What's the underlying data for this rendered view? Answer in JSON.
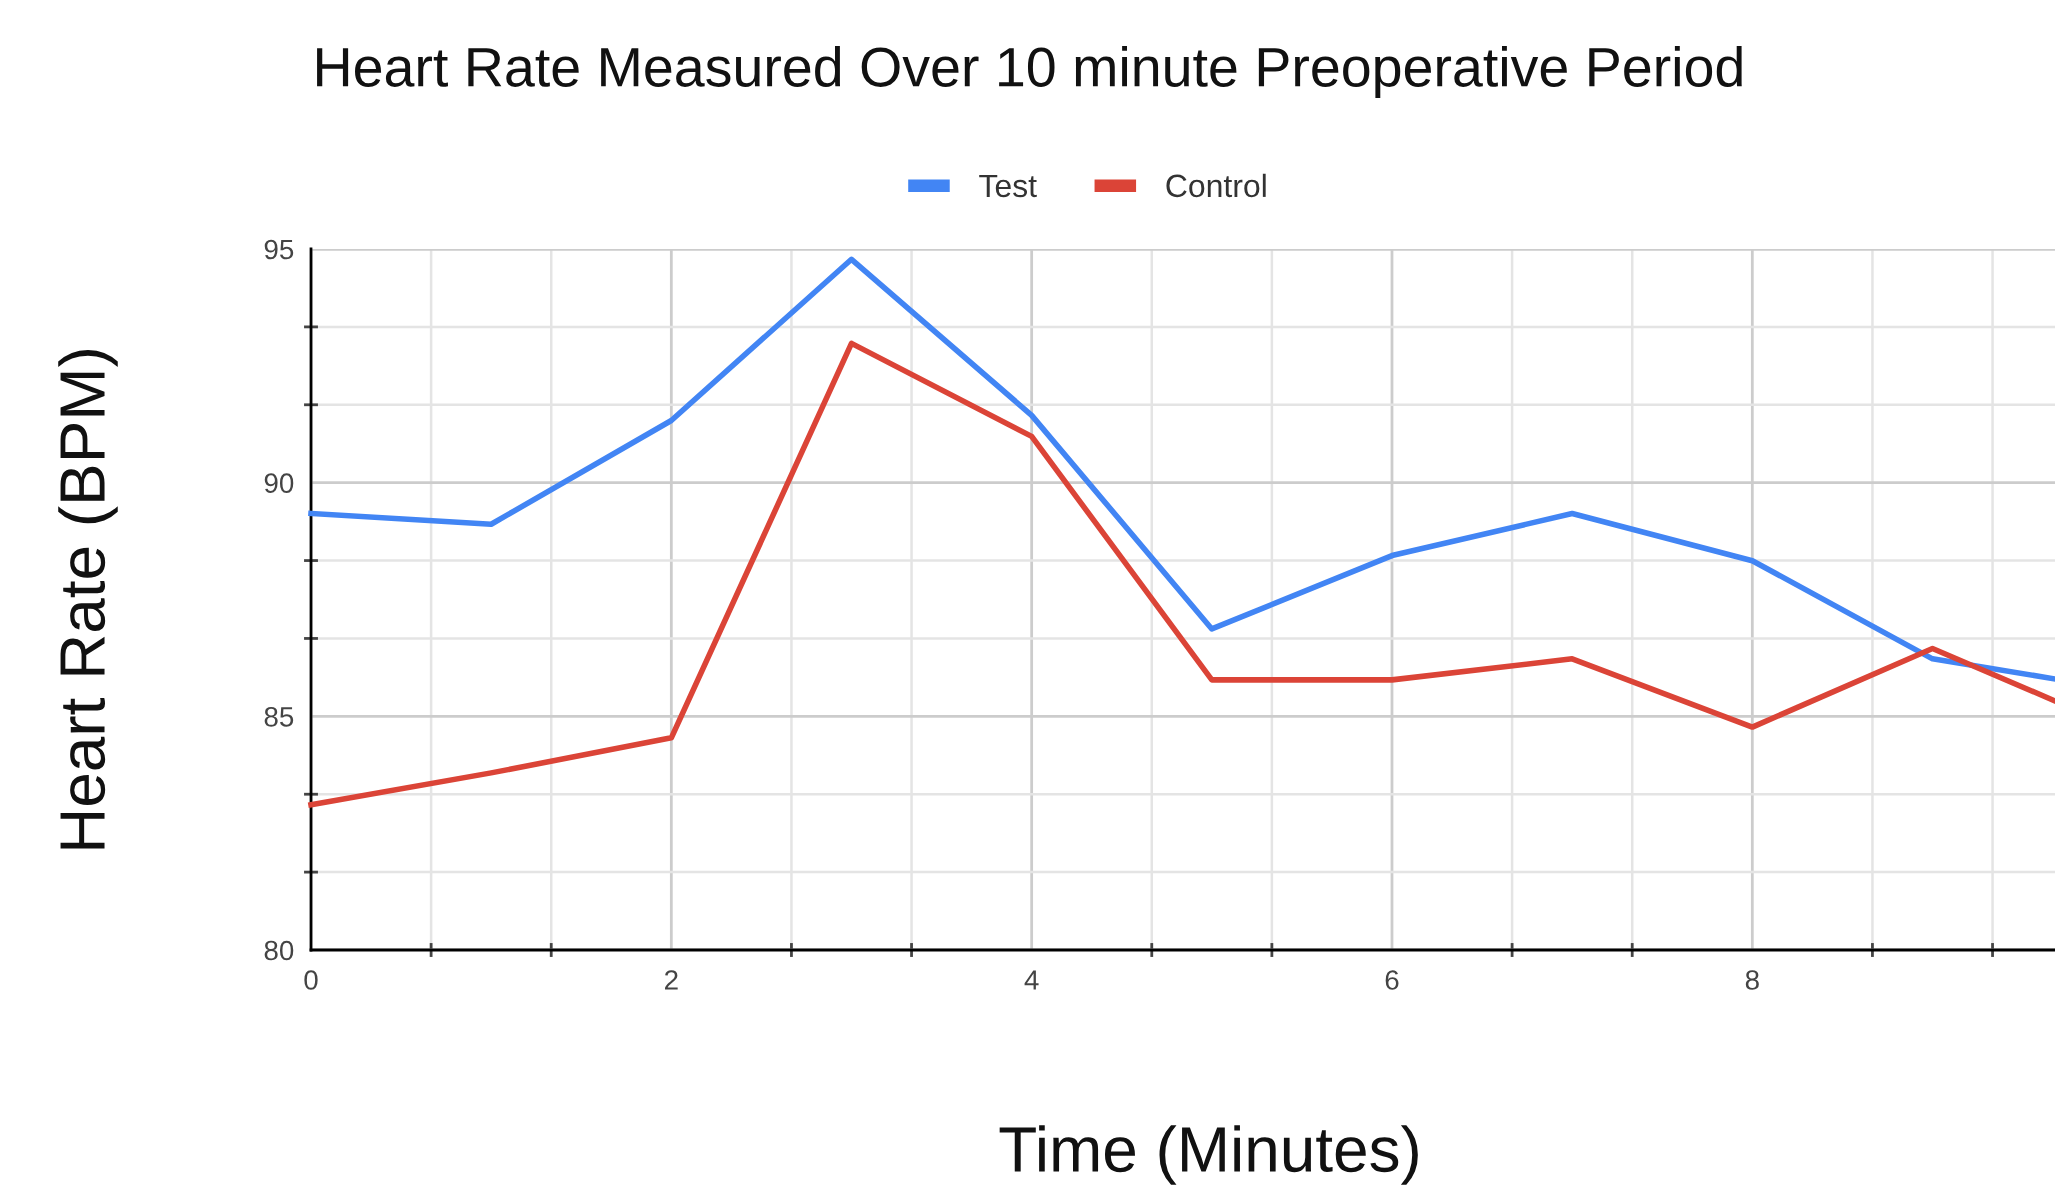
{
  "chart_data": {
    "type": "line",
    "title": "Heart Rate Measured Over 10 minute Preoperative Period",
    "xlabel": "Time (Minutes)",
    "ylabel": "Heart Rate (BPM)",
    "x": [
      0,
      1,
      2,
      3,
      4,
      5,
      6,
      7,
      8,
      9,
      9.68
    ],
    "series": [
      {
        "name": "Test",
        "color": "#4285f4",
        "values": [
          89.34,
          89.11,
          91.33,
          94.78,
          91.44,
          86.87,
          88.44,
          89.34,
          88.33,
          86.23,
          85.8
        ]
      },
      {
        "name": "Control",
        "color": "#db4437",
        "values": [
          83.11,
          83.79,
          84.54,
          92.98,
          90.99,
          85.78,
          85.78,
          86.23,
          84.77,
          86.45,
          85.33
        ]
      }
    ],
    "xlim": [
      0,
      9.68
    ],
    "xticks": [
      0,
      2,
      4,
      6,
      8
    ],
    "ylim": [
      80,
      95
    ],
    "yticks": [
      80,
      85,
      90,
      95
    ],
    "grid": true,
    "legend": "top",
    "marker": "none",
    "line_style": "solid"
  }
}
